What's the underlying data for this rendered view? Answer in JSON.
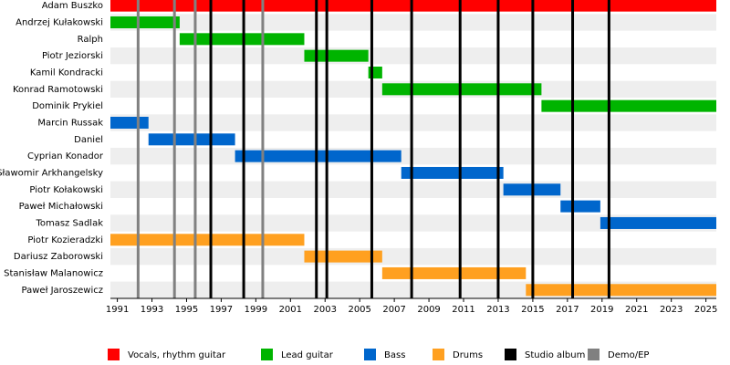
{
  "chart_data": {
    "type": "timeline",
    "xlim": [
      1990.6,
      2025.6
    ],
    "xticks": [
      1991,
      1993,
      1995,
      1997,
      1999,
      2001,
      2003,
      2005,
      2007,
      2009,
      2011,
      2013,
      2015,
      2017,
      2019,
      2021,
      2023,
      2025
    ],
    "series": [
      {
        "name": "Vocals, rhythm guitar",
        "color": "#ff0000",
        "bars": [
          {
            "label": "Adam Buszko",
            "start": 1990.6,
            "end": 2025.6
          }
        ]
      },
      {
        "name": "Lead guitar",
        "color": "#00b400",
        "bars": [
          {
            "label": "Andrzej Kułakowski",
            "start": 1990.6,
            "end": 1994.6
          },
          {
            "label": "Ralph",
            "start": 1994.6,
            "end": 2001.8
          },
          {
            "label": "Piotr Jeziorski",
            "start": 2001.8,
            "end": 2005.5
          },
          {
            "label": "Kamil Kondracki",
            "start": 2005.5,
            "end": 2006.3
          },
          {
            "label": "Konrad Ramotowski",
            "start": 2006.3,
            "end": 2015.5
          },
          {
            "label": "Dominik Prykiel",
            "start": 2015.5,
            "end": 2025.6
          }
        ]
      },
      {
        "name": "Bass",
        "color": "#0066cc",
        "bars": [
          {
            "label": "Marcin Russak",
            "start": 1990.6,
            "end": 1992.8
          },
          {
            "label": "Daniel",
            "start": 1992.8,
            "end": 1997.8
          },
          {
            "label": "Cyprian Konador",
            "start": 1997.8,
            "end": 2007.4
          },
          {
            "label": "Sławomir Arkhangelsky",
            "start": 2007.4,
            "end": 2013.3
          },
          {
            "label": "Piotr Kołakowski",
            "start": 2013.3,
            "end": 2016.6
          },
          {
            "label": "Paweł Michałowski",
            "start": 2016.6,
            "end": 2018.9
          },
          {
            "label": "Tomasz Sadlak",
            "start": 2018.9,
            "end": 2025.6
          }
        ]
      },
      {
        "name": "Drums",
        "color": "#ffa020",
        "bars": [
          {
            "label": "Piotr Kozieradzki",
            "start": 1990.6,
            "end": 2001.8
          },
          {
            "label": "Dariusz Zaborowski",
            "start": 2001.8,
            "end": 2006.3
          },
          {
            "label": "Stanisław Malanowicz",
            "start": 2006.3,
            "end": 2014.6
          },
          {
            "label": "Paweł Jaroszewicz",
            "start": 2014.6,
            "end": 2025.6
          }
        ]
      }
    ],
    "events": [
      {
        "name": "Studio album",
        "color": "#000000",
        "x": [
          1996.4,
          1998.3,
          2002.5,
          2003.1,
          2005.7,
          2008.0,
          2010.8,
          2013.0,
          2015.0,
          2017.3,
          2019.4
        ]
      },
      {
        "name": "Demo/EP",
        "color": "#808080",
        "x": [
          1992.2,
          1994.3,
          1995.5,
          1999.4
        ]
      }
    ]
  }
}
